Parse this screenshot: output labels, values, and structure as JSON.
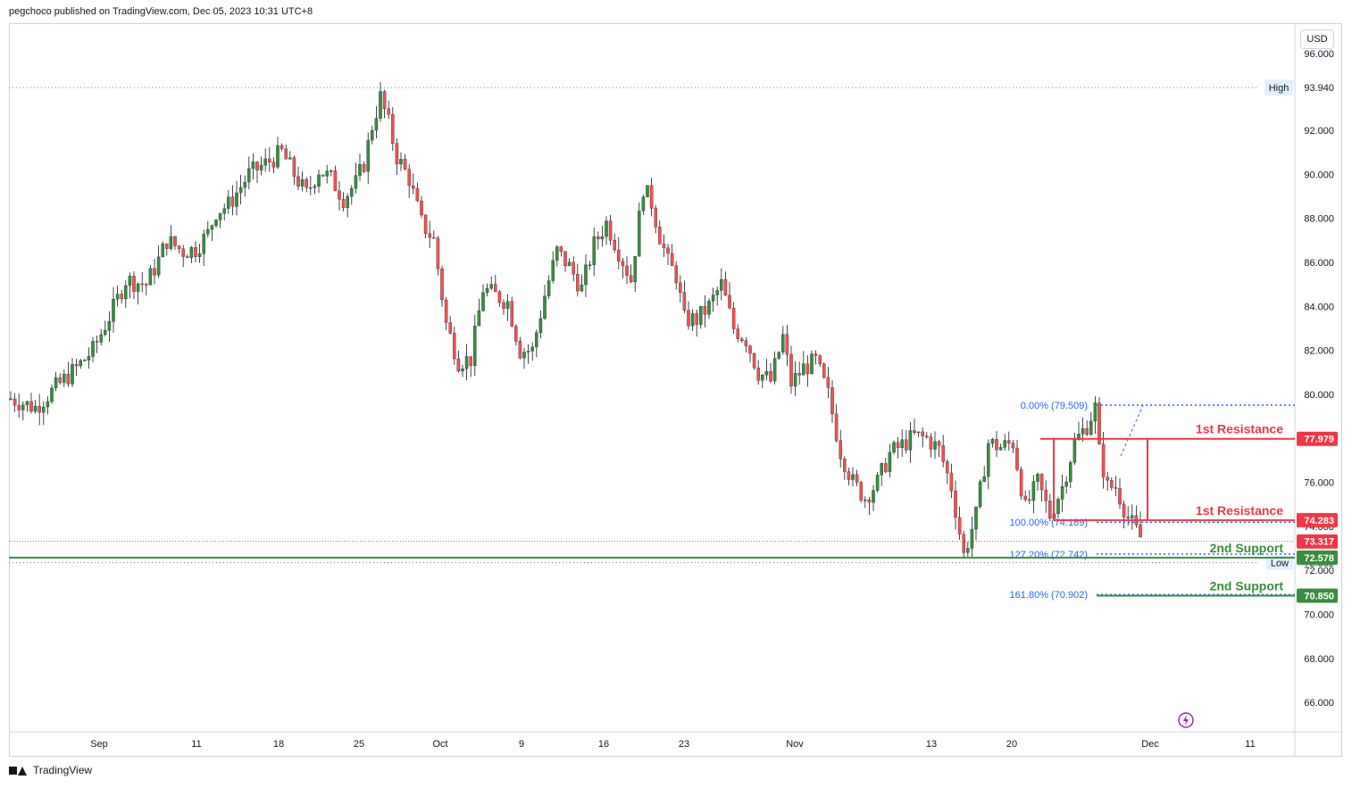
{
  "header": {
    "published": "pegchoco published on TradingView.com, Dec 05, 2023 10:31 UTC+8"
  },
  "footer": {
    "brand": "TradingView"
  },
  "currency": "USD",
  "colors": {
    "up": "#26a69a",
    "upCandle": "#388e3c",
    "down": "#ef5350",
    "resistance": "#f23645",
    "support": "#388e3c",
    "fib": "#2962ff",
    "grid": "#d1d4dc"
  },
  "chart_data": {
    "type": "candlestick",
    "ylim": [
      65.0,
      96.0
    ],
    "y_ticks": [
      "66.000",
      "68.000",
      "70.000",
      "72.000",
      "74.000",
      "76.000",
      "78.000",
      "80.000",
      "82.000",
      "84.000",
      "86.000",
      "88.000",
      "90.000",
      "92.000",
      "96.000"
    ],
    "x_ticks": [
      "Sep",
      "11",
      "18",
      "25",
      "Oct",
      "9",
      "16",
      "23",
      "Nov",
      "13",
      "20",
      "Dec",
      "11"
    ],
    "close_path": [
      [
        0,
        79.8
      ],
      [
        6,
        79.4
      ],
      [
        12,
        80.5
      ],
      [
        16,
        81.2
      ],
      [
        20,
        82.0
      ],
      [
        25,
        83.9
      ],
      [
        28,
        85.2
      ],
      [
        33,
        85.0
      ],
      [
        36,
        86.1
      ],
      [
        38,
        87.0
      ],
      [
        42,
        86.5
      ],
      [
        45,
        86.6
      ],
      [
        48,
        87.3
      ],
      [
        50,
        88.3
      ],
      [
        53,
        88.6
      ],
      [
        58,
        90.0
      ],
      [
        63,
        90.6
      ],
      [
        66,
        91.0
      ],
      [
        69,
        90.0
      ],
      [
        72,
        89.1
      ],
      [
        75,
        90.2
      ],
      [
        78,
        89.8
      ],
      [
        81,
        88.9
      ],
      [
        84,
        89.6
      ],
      [
        86,
        90.5
      ],
      [
        88,
        92.2
      ],
      [
        90,
        93.5
      ],
      [
        92,
        92.3
      ],
      [
        94,
        90.8
      ],
      [
        97,
        89.8
      ],
      [
        100,
        87.8
      ],
      [
        103,
        87.0
      ],
      [
        106,
        83.2
      ],
      [
        109,
        81.5
      ],
      [
        112,
        81.6
      ],
      [
        115,
        84.8
      ],
      [
        118,
        84.5
      ],
      [
        121,
        84.2
      ],
      [
        124,
        82.0
      ],
      [
        127,
        82.0
      ],
      [
        130,
        84.5
      ],
      [
        133,
        86.5
      ],
      [
        136,
        85.8
      ],
      [
        139,
        84.8
      ],
      [
        142,
        86.8
      ],
      [
        145,
        87.8
      ],
      [
        148,
        86.5
      ],
      [
        151,
        85.2
      ],
      [
        154,
        89.4
      ],
      [
        156,
        88.7
      ],
      [
        158,
        87.2
      ],
      [
        160,
        86.0
      ],
      [
        162,
        85.4
      ],
      [
        164,
        83.4
      ],
      [
        167,
        83.4
      ],
      [
        170,
        84.0
      ],
      [
        173,
        85.0
      ],
      [
        176,
        83.0
      ],
      [
        179,
        82.5
      ],
      [
        182,
        81.0
      ],
      [
        185,
        80.6
      ],
      [
        188,
        82.6
      ],
      [
        190,
        80.5
      ],
      [
        193,
        81.2
      ],
      [
        196,
        81.5
      ],
      [
        199,
        80.0
      ],
      [
        202,
        77.4
      ],
      [
        205,
        76.0
      ],
      [
        208,
        75.3
      ],
      [
        211,
        76.0
      ],
      [
        214,
        77.3
      ],
      [
        217,
        77.7
      ],
      [
        220,
        78.1
      ],
      [
        223,
        78.0
      ],
      [
        226,
        77.5
      ],
      [
        229,
        75.8
      ],
      [
        232,
        72.7
      ],
      [
        235,
        74.5
      ],
      [
        238,
        77.8
      ],
      [
        241,
        77.6
      ],
      [
        244,
        77.8
      ],
      [
        247,
        74.8
      ],
      [
        250,
        76.0
      ],
      [
        253,
        74.5
      ],
      [
        256,
        75.8
      ],
      [
        259,
        77.8
      ],
      [
        262,
        78.6
      ],
      [
        264,
        79.4
      ],
      [
        265,
        77.4
      ],
      [
        267,
        75.8
      ],
      [
        269,
        75.8
      ],
      [
        272,
        74.4
      ],
      [
        275,
        73.5
      ]
    ],
    "annotations": [
      {
        "price": 79.509,
        "fib_label": "0.00% (79.509)"
      },
      {
        "price": 77.979,
        "label": "1st Resistance",
        "tag": "77.979"
      },
      {
        "price": 74.283,
        "label": "1st Resistance",
        "tag": "74.283"
      },
      {
        "price": 74.189,
        "fib_label": "100.00% (74.189)"
      },
      {
        "price": 73.317,
        "tag": "73.317"
      },
      {
        "price": 72.742,
        "fib_label": "127.20% (72.742)"
      },
      {
        "price": 72.578,
        "label": "2nd Support",
        "tag": "72.578"
      },
      {
        "price": 70.902,
        "fib_label": "161.80% (70.902)"
      },
      {
        "price": 70.85,
        "label": "2nd Support",
        "tag": "70.850"
      }
    ],
    "high": {
      "label": "High",
      "value": "93.940",
      "price": 93.94
    },
    "low": {
      "label": "Low",
      "value": "72.352",
      "price": 72.352
    }
  }
}
